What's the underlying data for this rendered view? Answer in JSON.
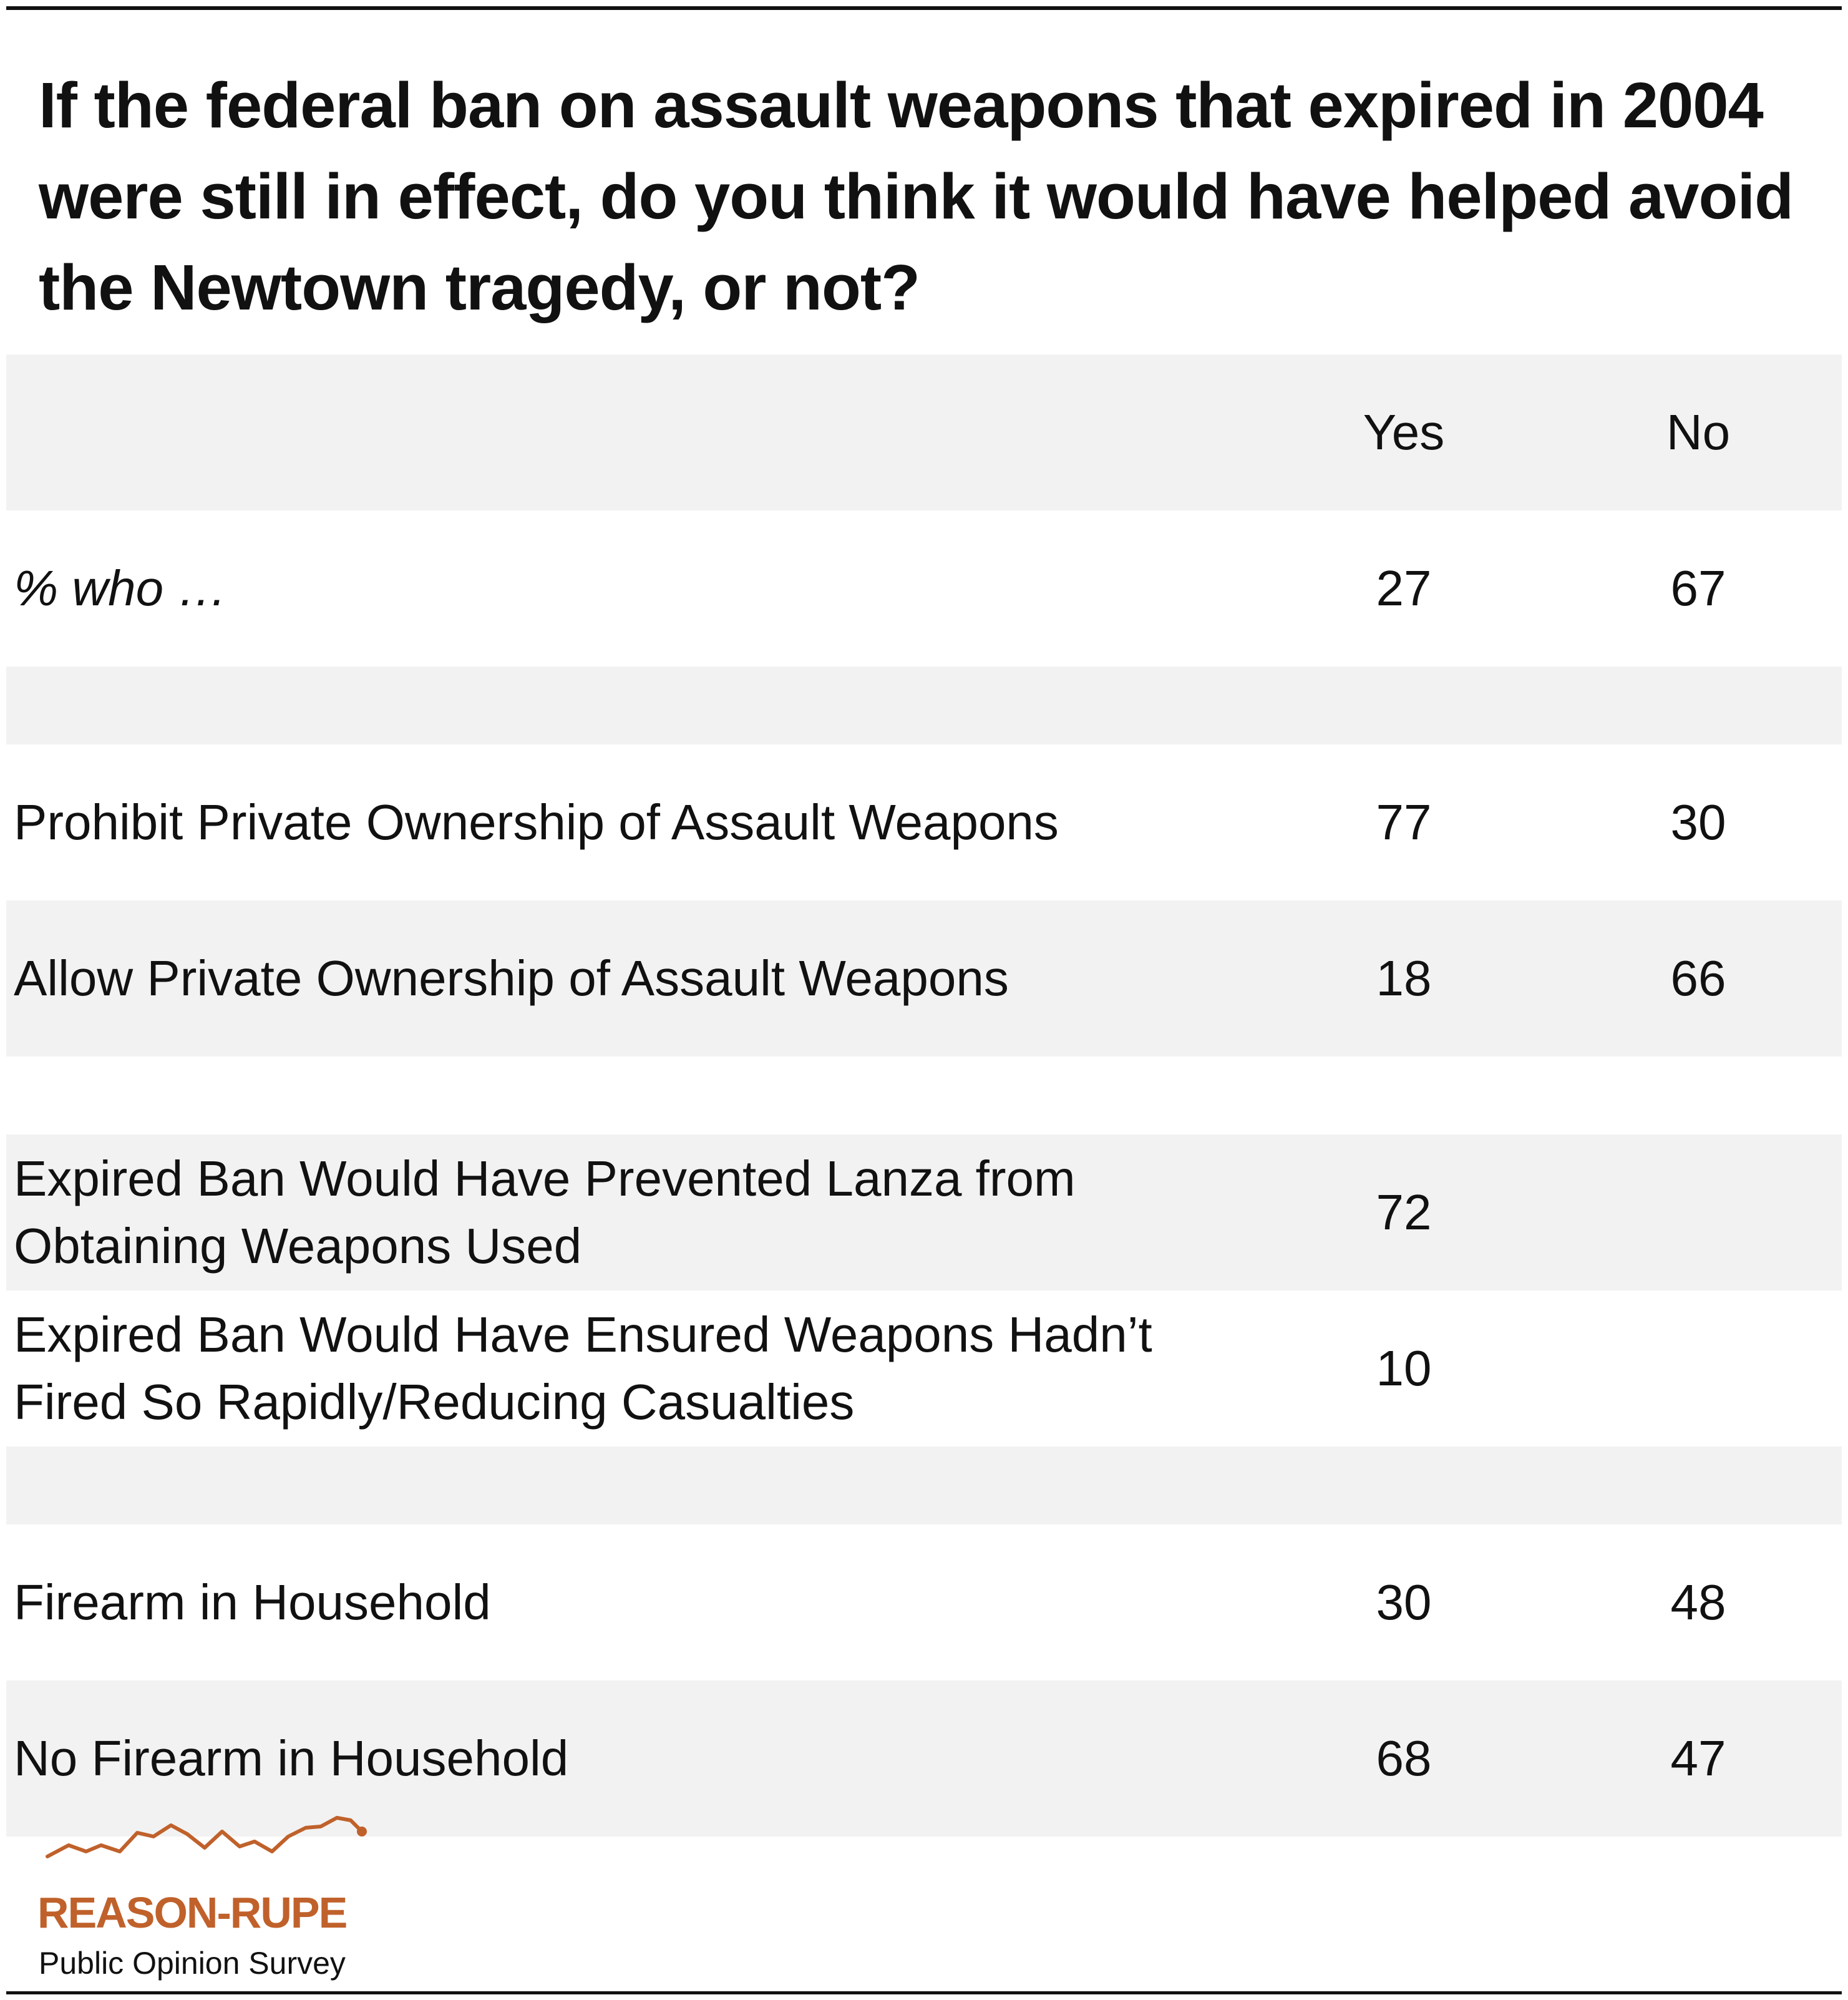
{
  "chart_data": {
    "type": "table",
    "title": "If the federal ban on assault weapons that expired in 2004 were still in effect, do you think it would have helped avoid the Newtown tragedy, or not?",
    "columns": [
      "Yes",
      "No"
    ],
    "rows": [
      {
        "label": "% who …",
        "yes": "27",
        "no": "67"
      },
      {
        "label": "Prohibit Private Ownership of Assault Weapons",
        "yes": "77",
        "no": "30"
      },
      {
        "label": "Allow Private Ownership of Assault Weapons",
        "yes": "18",
        "no": "66"
      },
      {
        "label": "Expired Ban Would Have Prevented Lanza from Obtaining Weapons Used",
        "yes": "72",
        "no": ""
      },
      {
        "label": "Expired Ban Would Have Ensured Weapons Hadn’t Fired So Rapidly/Reducing Casualties",
        "yes": "10",
        "no": ""
      },
      {
        "label": "Firearm in Household",
        "yes": "30",
        "no": "48"
      },
      {
        "label": "No Firearm in Household",
        "yes": "68",
        "no": "47"
      }
    ]
  },
  "logo": {
    "name": "REASON-RUPE",
    "subtitle": "Public Opinion Survey",
    "icon": "line-trend-icon",
    "accent_color": "#c0612b"
  },
  "colors": {
    "row_shade": "#f2f2f2",
    "text": "#111111"
  }
}
